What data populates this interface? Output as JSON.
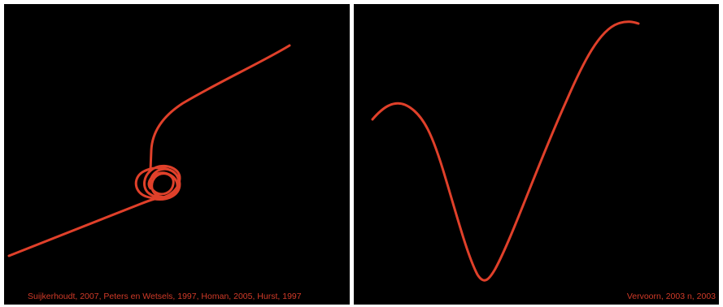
{
  "colors": {
    "background": "#000000",
    "curve": "#e0402a",
    "caption": "#d03a28",
    "divider": "#ffffff"
  },
  "left_panel": {
    "caption": "Suijkerhoudt, 2007, Peters en Wetsels, 1997, Homan, 2005, Hurst, 1997"
  },
  "right_panel": {
    "caption": "Vervoorn, 2003  n, 2003"
  }
}
